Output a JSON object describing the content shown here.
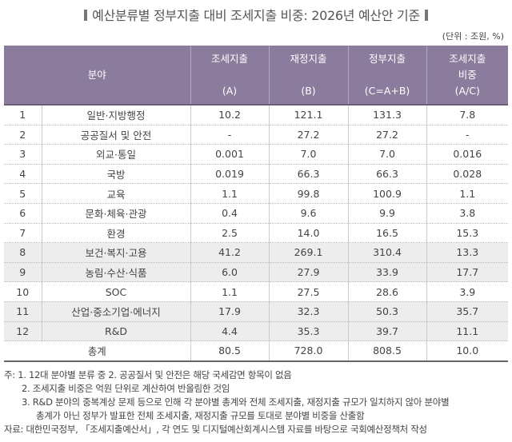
{
  "title": "예산분류별 정부지출 대비 조세지출 비중: 2026년 예산안 기준",
  "unit": "(단위 : 조원, %)",
  "headers": {
    "field": "분야",
    "a": [
      "조세지출",
      "(A)"
    ],
    "b": [
      "재정지출",
      "(B)"
    ],
    "c": [
      "정부지출",
      "(C=A+B)"
    ],
    "ratio": [
      "조세지출",
      "비중",
      "(A/C)"
    ]
  },
  "rows": [
    {
      "no": "1",
      "field": "일반·지방행정",
      "a": "10.2",
      "b": "121.1",
      "c": "131.3",
      "ratio": "7.8"
    },
    {
      "no": "2",
      "field": "공공질서 및 안전",
      "a": "-",
      "b": "27.2",
      "c": "27.2",
      "ratio": "-"
    },
    {
      "no": "3",
      "field": "외교·통일",
      "a": "0.001",
      "b": "7.0",
      "c": "7.0",
      "ratio": "0.016"
    },
    {
      "no": "4",
      "field": "국방",
      "a": "0.019",
      "b": "66.3",
      "c": "66.3",
      "ratio": "0.028"
    },
    {
      "no": "5",
      "field": "교육",
      "a": "1.1",
      "b": "99.8",
      "c": "100.9",
      "ratio": "1.1"
    },
    {
      "no": "6",
      "field": "문화·체육·관광",
      "a": "0.4",
      "b": "9.6",
      "c": "9.9",
      "ratio": "3.8"
    },
    {
      "no": "7",
      "field": "환경",
      "a": "2.5",
      "b": "14.0",
      "c": "16.5",
      "ratio": "15.3"
    },
    {
      "no": "8",
      "field": "보건·복지·고용",
      "a": "41.2",
      "b": "269.1",
      "c": "310.4",
      "ratio": "13.3"
    },
    {
      "no": "9",
      "field": "농림·수산·식품",
      "a": "6.0",
      "b": "27.9",
      "c": "33.9",
      "ratio": "17.7"
    },
    {
      "no": "10",
      "field": "SOC",
      "a": "1.1",
      "b": "27.5",
      "c": "28.6",
      "ratio": "3.9"
    },
    {
      "no": "11",
      "field": "산업·중소기업·에너지",
      "a": "17.9",
      "b": "32.3",
      "c": "50.3",
      "ratio": "35.7"
    },
    {
      "no": "12",
      "field": "R&D",
      "a": "4.4",
      "b": "35.3",
      "c": "39.7",
      "ratio": "11.1"
    }
  ],
  "total": {
    "label": "총계",
    "a": "80.5",
    "b": "728.0",
    "c": "808.5",
    "ratio": "10.0"
  },
  "notes": {
    "n1": "주: 1. 12대 분야별 분류 중 2. 공공질서 및 안전은 해당 국세감면 항목이 없음",
    "n2": "2. 조세지출 비중은 억원 단위로 계산하여 반올림한 것임",
    "n3a": "3. R&D 분야의 중복계상 문제 등으로 인해 각 분야별 총계와 전체 조세지출, 재정지출 규모가 일치하지 않아 분야별",
    "n3b": "총계가 아닌 정부가 발표한 전체 조세지출, 재정지출 규모를 토대로 분야별 비중을 산출함",
    "source": "자료: 대한민국정부, 「조세지출예산서」, 각 연도 및 디지털예산회계시스템 자료를 바탕으로 국회예산정책처 작성"
  },
  "colors": {
    "header_bg": "#8b7b9c",
    "shaded_row": "#ededed"
  }
}
